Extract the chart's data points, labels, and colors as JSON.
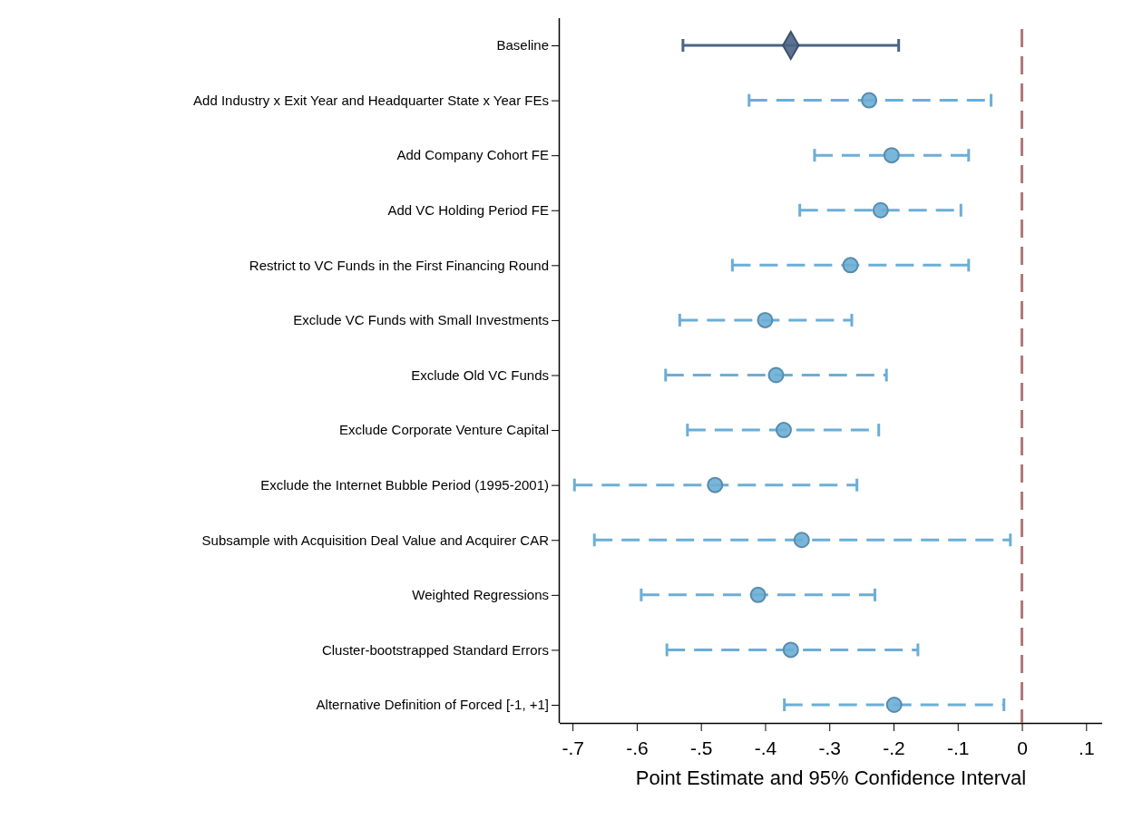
{
  "chart_data": {
    "type": "scatter",
    "orientation": "horizontal",
    "xlabel": "Point Estimate and 95% Confidence Interval",
    "categories": [
      "Baseline",
      "Add Industry x Exit Year and Headquarter State x Year FEs",
      "Add Company Cohort FE",
      "Add VC Holding Period FE",
      "Restrict to VC Funds in the First Financing Round",
      "Exclude VC Funds with Small Investments",
      "Exclude Old VC Funds",
      "Exclude Corporate Venture Capital",
      "Exclude the Internet Bubble Period (1995-2001)",
      "Subsample with Acquisition Deal Value and Acquirer CAR",
      "Weighted Regressions",
      "Cluster-bootstrapped Standard Errors",
      "Alternative Definition of Forced [-1, +1]"
    ],
    "xlim": [
      -0.72,
      0.125
    ],
    "xticks": [
      {
        "value": -0.7,
        "label": "-.7"
      },
      {
        "value": -0.6,
        "label": "-.6"
      },
      {
        "value": -0.5,
        "label": "-.5"
      },
      {
        "value": -0.4,
        "label": "-.4"
      },
      {
        "value": -0.3,
        "label": "-.3"
      },
      {
        "value": -0.2,
        "label": "-.2"
      },
      {
        "value": -0.1,
        "label": "-.1"
      },
      0,
      {
        "value": 0.1,
        "label": ".1"
      }
    ],
    "grid": false,
    "ref_lines": [
      {
        "axis": "x",
        "value": 0,
        "color": "#b07878",
        "line_style": "dashed"
      }
    ],
    "series": [
      {
        "color": "#4a6485",
        "marker": "diamond",
        "line_style": "solid",
        "values": [
          -0.36,
          null,
          null,
          null,
          null,
          null,
          null,
          null,
          null,
          null,
          null,
          null,
          null
        ],
        "errors": [
          [
            -0.528,
            -0.192
          ],
          null,
          null,
          null,
          null,
          null,
          null,
          null,
          null,
          null,
          null,
          null,
          null
        ]
      },
      {
        "color": "#6baed6",
        "marker": "circle",
        "line_style": "dashed",
        "values": [
          null,
          -0.238,
          -0.203,
          -0.22,
          -0.267,
          -0.4,
          -0.383,
          -0.371,
          -0.478,
          -0.343,
          -0.411,
          -0.36,
          -0.199
        ],
        "errors": [
          null,
          [
            -0.425,
            -0.048
          ],
          [
            -0.323,
            -0.083
          ],
          [
            -0.346,
            -0.095
          ],
          [
            -0.451,
            -0.083
          ],
          [
            -0.533,
            -0.265
          ],
          [
            -0.555,
            -0.211
          ],
          [
            -0.521,
            -0.223
          ],
          [
            -0.697,
            -0.257
          ],
          [
            -0.666,
            -0.018
          ],
          [
            -0.593,
            -0.229
          ],
          [
            -0.553,
            -0.162
          ],
          [
            -0.37,
            -0.028
          ]
        ]
      }
    ]
  }
}
